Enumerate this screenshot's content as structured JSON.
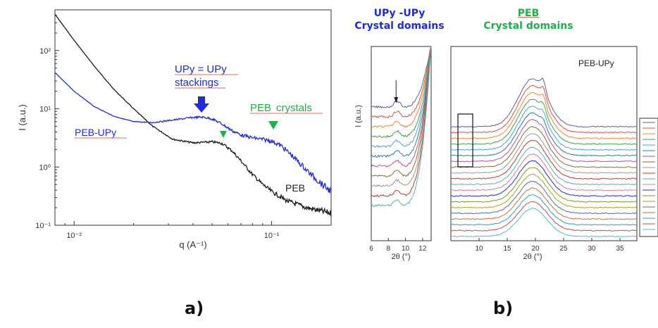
{
  "figure": {
    "panel_a_label": "a)",
    "panel_b_label": "b)",
    "header_upy_line1": "UPy -UPy",
    "header_upy_line2": "Crystal domains",
    "header_peb_line1": "PEB",
    "header_peb_line2": "Crystal domains"
  },
  "colors": {
    "blue": "#1f2bd8",
    "green": "#1fb04a",
    "black": "#1a1a1a",
    "underline_red": "#e06a6a"
  },
  "chart_data": [
    {
      "type": "line",
      "panel": "a)",
      "xlabel": "q (A⁻¹)",
      "ylabel": "I (a.u.)",
      "xscale": "log",
      "yscale": "log",
      "xlim": [
        0.008,
        0.2
      ],
      "ylim": [
        0.1,
        500
      ],
      "x_ticks": [
        "10⁻²",
        "10⁻¹"
      ],
      "y_ticks": [
        "10⁻¹",
        "10⁰",
        "10¹",
        "10²"
      ],
      "annotations": {
        "upy_stack_line1": "UPy = UPy",
        "upy_stack_line2": "stackings",
        "peb_crystals_a": "PEB",
        "peb_crystals_b": "crystals"
      },
      "series": [
        {
          "name": "PEB",
          "color": "#1a1a1a",
          "points": [
            [
              0.008,
              420
            ],
            [
              0.01,
              150
            ],
            [
              0.0126,
              55
            ],
            [
              0.0158,
              22
            ],
            [
              0.02,
              10
            ],
            [
              0.025,
              5
            ],
            [
              0.0316,
              3.0
            ],
            [
              0.04,
              2.6
            ],
            [
              0.05,
              2.7
            ],
            [
              0.056,
              2.55
            ],
            [
              0.063,
              1.9
            ],
            [
              0.071,
              1.2
            ],
            [
              0.079,
              0.78
            ],
            [
              0.089,
              0.52
            ],
            [
              0.1,
              0.38
            ],
            [
              0.12,
              0.26
            ],
            [
              0.15,
              0.2
            ],
            [
              0.2,
              0.16
            ]
          ]
        },
        {
          "name": "PEB-UPy",
          "color": "#1f2bd8",
          "points": [
            [
              0.008,
              42
            ],
            [
              0.01,
              20
            ],
            [
              0.0126,
              11
            ],
            [
              0.0158,
              7.5
            ],
            [
              0.02,
              6.0
            ],
            [
              0.025,
              5.8
            ],
            [
              0.0316,
              6.4
            ],
            [
              0.04,
              7.1
            ],
            [
              0.045,
              7.2
            ],
            [
              0.05,
              6.7
            ],
            [
              0.056,
              5.5
            ],
            [
              0.063,
              4.2
            ],
            [
              0.071,
              3.5
            ],
            [
              0.079,
              3.2
            ],
            [
              0.089,
              3.0
            ],
            [
              0.1,
              2.8
            ],
            [
              0.112,
              2.3
            ],
            [
              0.126,
              1.6
            ],
            [
              0.141,
              1.1
            ],
            [
              0.158,
              0.75
            ],
            [
              0.178,
              0.52
            ],
            [
              0.2,
              0.38
            ]
          ]
        }
      ]
    },
    {
      "type": "line",
      "panel": "b) left",
      "xlabel": "2θ (°)",
      "ylabel": "I (a.u.)",
      "xlim": [
        6,
        13
      ],
      "x_ticks": [
        "6",
        "8",
        "10",
        "12"
      ],
      "marker_note": "arrow at ~9°"
    },
    {
      "type": "line",
      "panel": "b) right",
      "title": "PEB-UPy",
      "xlabel": "2θ (°)",
      "xlim": [
        5,
        38
      ],
      "x_ticks": [
        "10",
        "15",
        "20",
        "25",
        "30",
        "35"
      ],
      "series_colors": [
        "#6b5b8e",
        "#e0503c",
        "#f08a2c",
        "#3aa54a",
        "#4ea0e0",
        "#2b7d9c",
        "#c64b8c",
        "#8a6e2f",
        "#9a9a9a",
        "#c0392b",
        "#56b4b0",
        "#e07aa0",
        "#1f2bd8",
        "#7a9a2a",
        "#b0a020",
        "#4a6fb0",
        "#d07030",
        "#28a0c8",
        "#b85050",
        "#4fc0c0"
      ]
    }
  ]
}
